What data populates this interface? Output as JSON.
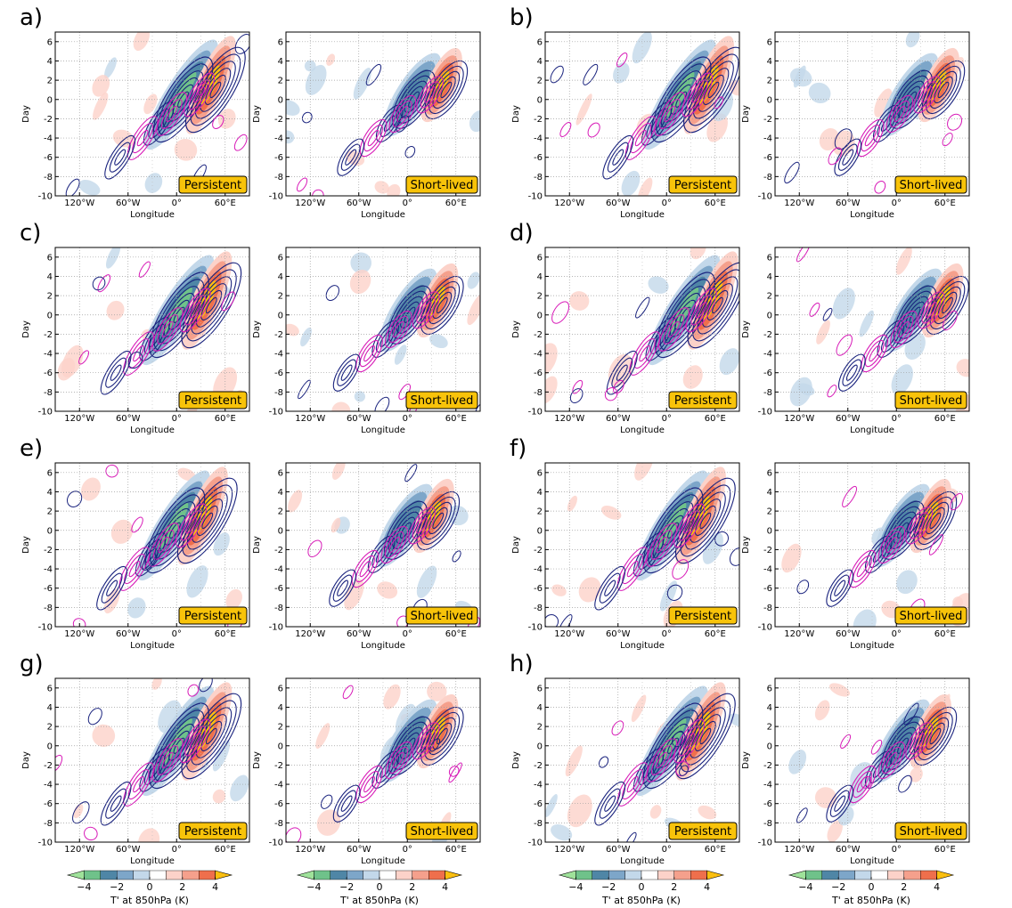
{
  "figure": {
    "x_axis_label": "Longitude",
    "y_axis_label": "Day",
    "x_ticks": [
      "120°W",
      "60°W",
      "0°",
      "60°E"
    ],
    "y_ticks": [
      "6",
      "4",
      "2",
      "0",
      "-2",
      "-4",
      "-6",
      "-8",
      "-10"
    ]
  },
  "colorbar": {
    "label": "T' at 850hPa (K)",
    "tick_labels": [
      "−4",
      "−2",
      "0",
      "2",
      "4"
    ],
    "colors": [
      "#9fe29a",
      "#6fc28a",
      "#4f86a6",
      "#7da6c9",
      "#c3d8ea",
      "#ffffff",
      "#fcd2c9",
      "#f5a08c",
      "#ef6f4c",
      "#fbbf0f"
    ]
  },
  "colors": {
    "contour_blue": "#1a237e",
    "contour_magenta": "#d81bb8",
    "badge_fill": "#f8c30a"
  },
  "chart_data": {
    "type": "hovmoller",
    "x_range": [
      -150,
      90
    ],
    "x_unit": "degrees longitude",
    "y_range": [
      -10,
      7
    ],
    "y_unit": "day",
    "panels": [
      {
        "label": "a)",
        "column_titles": [
          "Persistent",
          "Short-lived"
        ],
        "center_lon": 20,
        "var_shading": "T' at 850hPa"
      },
      {
        "label": "b)",
        "column_titles": [
          "Persistent",
          "Short-lived"
        ],
        "center_lon": 30,
        "var_shading": "T' at 850hPa"
      },
      {
        "label": "c)",
        "column_titles": [
          "Persistent",
          "Short-lived"
        ],
        "center_lon": 15,
        "var_shading": "T' at 850hPa"
      },
      {
        "label": "d)",
        "column_titles": [
          "Persistent",
          "Short-lived"
        ],
        "center_lon": 35,
        "var_shading": "T' at 850hPa"
      },
      {
        "label": "e)",
        "column_titles": [
          "Persistent",
          "Short-lived"
        ],
        "center_lon": 10,
        "var_shading": "T' at 850hPa"
      },
      {
        "label": "f)",
        "column_titles": [
          "Persistent",
          "Short-lived"
        ],
        "center_lon": 20,
        "var_shading": "T' at 850hPa"
      },
      {
        "label": "g)",
        "column_titles": [
          "Persistent",
          "Short-lived"
        ],
        "center_lon": 15,
        "var_shading": "T' at 850hPa"
      },
      {
        "label": "h)",
        "column_titles": [
          "Persistent",
          "Short-lived"
        ],
        "center_lon": 20,
        "var_shading": "T' at 850hPa"
      }
    ],
    "colorbar_range": [
      -5,
      5
    ],
    "colorbar_ticks": [
      -4,
      -2,
      0,
      2,
      4
    ]
  }
}
